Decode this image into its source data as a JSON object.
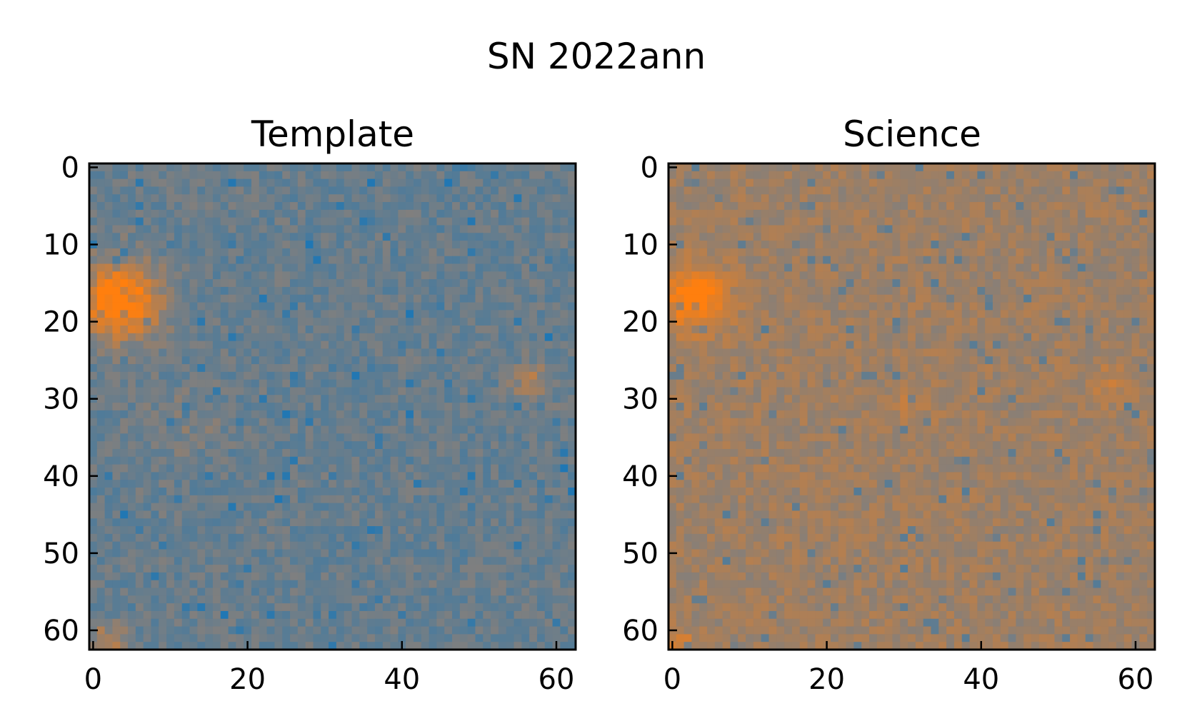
{
  "chart_data": {
    "type": "heatmap",
    "title": "SN 2022ann",
    "colors": {
      "low": "#1f77b4",
      "high": "#ff7f0e",
      "mid": "#7f7f7f"
    },
    "panels": [
      {
        "title": "Template",
        "xlim": [
          -0.5,
          62.5
        ],
        "ylim": [
          62.5,
          -0.5
        ],
        "xticks": [
          0,
          20,
          40,
          60
        ],
        "yticks": [
          0,
          10,
          20,
          30,
          40,
          50,
          60
        ],
        "shape": [
          63,
          63
        ],
        "background_level": 0.38,
        "noise": 0.13,
        "sources": [
          {
            "x": 3.5,
            "y": 17.5,
            "peak": 0.75,
            "sigma": 3.5
          },
          {
            "x": 57,
            "y": 28,
            "peak": 0.3,
            "sigma": 1.8
          },
          {
            "x": 2,
            "y": 62,
            "peak": 0.35,
            "sigma": 2
          },
          {
            "x": 12,
            "y": 33,
            "peak": 0.08,
            "sigma": 4
          }
        ]
      },
      {
        "title": "Science",
        "xlim": [
          -0.5,
          62.5
        ],
        "ylim": [
          62.5,
          -0.5
        ],
        "xticks": [
          0,
          20,
          40,
          60
        ],
        "yticks": [
          0,
          10,
          20,
          30,
          40,
          50,
          60
        ],
        "shape": [
          63,
          63
        ],
        "background_level": 0.62,
        "noise": 0.09,
        "sources": [
          {
            "x": 3,
            "y": 17,
            "peak": 0.45,
            "sigma": 2.8
          },
          {
            "x": 57,
            "y": 28,
            "peak": 0.12,
            "sigma": 1.8
          },
          {
            "x": 31,
            "y": 31,
            "peak": 0.1,
            "sigma": 1.8
          },
          {
            "x": 1,
            "y": 62,
            "peak": 0.2,
            "sigma": 1.5
          }
        ]
      }
    ]
  }
}
